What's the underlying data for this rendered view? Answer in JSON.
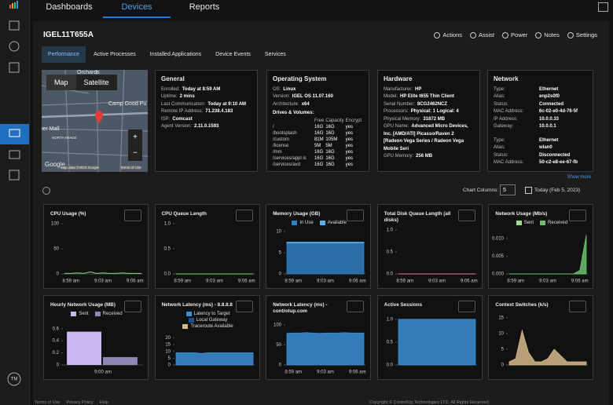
{
  "nav": {
    "tabs": [
      "Dashboards",
      "Devices",
      "Reports"
    ],
    "active": 1
  },
  "device": {
    "name": "IGEL11T655A",
    "actions": [
      "Actions",
      "Assist",
      "Power",
      "Notes",
      "Settings"
    ]
  },
  "tabs": {
    "items": [
      "Performance",
      "Active Processes",
      "Installed Applications",
      "Device Events",
      "Services"
    ],
    "active": 0
  },
  "map": {
    "buttons": [
      "Map",
      "Satellite"
    ],
    "labels": [
      "Orchards",
      "Camp Good Pu",
      "ver Mall",
      "NORTH IMAGE"
    ],
    "attribution": [
      "Google",
      "Map data ©2023 Google",
      "Terms of Use"
    ]
  },
  "cards": [
    {
      "title": "General",
      "groups": [
        [
          [
            "Enrolled:",
            "Today at 8:59 AM"
          ],
          [
            "Uptime:",
            "2 mins"
          ],
          [
            "Last Communication:",
            "Today at 9:10 AM"
          ],
          [
            "Remote IP Address:",
            "71.238.4.183"
          ],
          [
            "ISP:",
            "Comcast"
          ],
          [
            "Agent Version:",
            "2.11.0.1593"
          ]
        ]
      ]
    },
    {
      "title": "Operating System",
      "groups": [
        [
          [
            "OS:",
            "Linux"
          ],
          [
            "Version:",
            "IGEL OS 11.07.160"
          ],
          [
            "Architecture:",
            "x64"
          ]
        ]
      ],
      "drives": {
        "title": "Drives & Volumes:",
        "header": [
          "Free",
          "Capacity",
          "Encrypt"
        ],
        "rows": [
          [
            "/",
            "16G",
            "16G",
            "yes"
          ],
          [
            "/bootsplash",
            "16G",
            "16G",
            "yes"
          ],
          [
            "/custom",
            "81M",
            "105M",
            "yes"
          ],
          [
            "/license",
            "5M",
            "5M",
            "yes"
          ],
          [
            "/mm",
            "16G",
            "16G",
            "yes"
          ],
          [
            "/services/appl is",
            "16G",
            "16G",
            "yes"
          ],
          [
            "/services/avd",
            "16G",
            "16G",
            "yes"
          ]
        ]
      }
    },
    {
      "title": "Hardware",
      "groups": [
        [
          [
            "Manufacturer:",
            "HP"
          ],
          [
            "Model:",
            "HP Elite t655 Thin Client"
          ],
          [
            "Serial Number:",
            "8CG2462NCZ"
          ],
          [
            "Processors:",
            "Physical: 1 Logical: 4"
          ],
          [
            "Physical Memory:",
            "31872 MB"
          ],
          [
            "GPU Name:",
            "Advanced Micro Devices, Inc. [AMD/ATI] Picasso/Raven 2 [Radeon Vega Series / Radeon Vega Mobile Seri"
          ],
          [
            "GPU Memory:",
            "256 MB"
          ]
        ]
      ]
    },
    {
      "title": "Network",
      "groups": [
        [
          [
            "Type:",
            "Ethernet"
          ],
          [
            "Alias:",
            "enp2s0f0"
          ],
          [
            "Status:",
            "Connected"
          ],
          [
            "MAC Address:",
            "6c-02-e0-4d-76-5f"
          ],
          [
            "IP Address:",
            "10.0.0.33"
          ],
          [
            "Gateway:",
            "10.0.0.1"
          ]
        ],
        [
          [
            "Type:",
            "Ethernet"
          ],
          [
            "Alias:",
            "wlan0"
          ],
          [
            "Status:",
            "Disconnected"
          ],
          [
            "MAC Address:",
            "50-c2-e8-ee-67-fb"
          ]
        ]
      ]
    }
  ],
  "controls": {
    "show_more": "Show more",
    "columns_label": "Chart Columns:",
    "columns": "5",
    "date": "Today (Feb 5, 2023)"
  },
  "charts": [
    {
      "title": "CPU Usage (%)",
      "type": "line",
      "ylim": [
        0,
        100
      ],
      "yticks": [
        100,
        50,
        0
      ],
      "xlabels": [
        "8:59 am",
        "9:03 am",
        "9:06 am"
      ],
      "series": [
        {
          "color": "#7ed87e",
          "values": [
            1,
            1,
            2,
            1,
            4,
            1,
            2,
            1,
            1,
            2,
            1,
            1,
            1
          ]
        }
      ]
    },
    {
      "title": "CPU Queue Length",
      "type": "line",
      "ylim": [
        0,
        1
      ],
      "yticks": [
        {
          "value": 1,
          "label": "1.0"
        },
        0.5,
        {
          "value": 0,
          "label": "0.0"
        }
      ],
      "xlabels": [
        "8:59 am",
        "9:03 am",
        "9:06 am"
      ],
      "series": [
        {
          "color": "#7ed87e",
          "values": [
            0,
            0,
            0,
            0,
            0,
            0,
            0,
            0,
            0,
            0,
            0,
            0,
            0
          ]
        }
      ]
    },
    {
      "title": "Memory Usage (GB)",
      "type": "area",
      "ylim": [
        0,
        10
      ],
      "yticks": [
        10,
        5,
        0
      ],
      "xlabels": [
        "8:59 am",
        "9:03 am",
        "9:06 am"
      ],
      "series": [
        {
          "name": "In Use",
          "color": "#2f7fc4",
          "values": [
            7.3,
            7.3,
            7.3,
            7.3,
            7.3,
            7.3,
            7.3,
            7.3,
            7.3,
            7.3,
            7.3,
            7.3,
            7.3
          ]
        },
        {
          "name": "Available",
          "color": "#5ab0ea",
          "values": [
            0.2,
            0.2,
            0.2,
            0.2,
            0.2,
            0.2,
            0.2,
            0.2,
            0.2,
            0.2,
            0.2,
            0.2,
            0.2
          ]
        }
      ]
    },
    {
      "title": "Total Disk Queue Length (all disks)",
      "type": "line",
      "ylim": [
        0,
        1
      ],
      "yticks": [
        {
          "value": 1,
          "label": "1.0"
        },
        0.5,
        {
          "value": 0,
          "label": "0.0"
        }
      ],
      "xlabels": [
        "8:59 am",
        "9:03 am",
        "9:06 am"
      ],
      "series": [
        {
          "color": "#e07aa0",
          "values": [
            0,
            0,
            0,
            0,
            0,
            0,
            0,
            0,
            0,
            0,
            0,
            0,
            0
          ]
        }
      ]
    },
    {
      "title": "Network Usage (Mb/s)",
      "type": "area",
      "ylim": [
        0,
        0.012
      ],
      "yticks": [
        {
          "value": 0.01,
          "label": "0.010"
        },
        0.005,
        {
          "value": 0,
          "label": "0.000"
        }
      ],
      "xlabels": [
        "8:59 am",
        "9:03 am",
        "9:06 am"
      ],
      "series": [
        {
          "name": "Sent",
          "color": "#9edc8e",
          "values": [
            0,
            0,
            0,
            0,
            0,
            0,
            0,
            0,
            0,
            0,
            0,
            0,
            0
          ]
        },
        {
          "name": "Received",
          "color": "#6cc06c",
          "values": [
            0,
            0,
            0,
            0,
            0,
            0,
            0,
            0,
            0,
            0,
            0,
            0.001,
            0.011
          ]
        }
      ]
    },
    {
      "title": "Hourly Network Usage (MB)",
      "type": "bar",
      "ylim": [
        0,
        0.7
      ],
      "yticks": [
        0.6,
        0.4,
        0.2,
        0
      ],
      "categories": [
        "9:00 am"
      ],
      "series": [
        {
          "name": "Sent",
          "color": "#c9b8f0",
          "values": [
            0.55
          ]
        },
        {
          "name": "Received",
          "color": "#8f86b5",
          "values": [
            0.13
          ]
        }
      ]
    },
    {
      "title": "Network Latency (ms) - 8.8.8.8",
      "type": "area",
      "ylim": [
        0,
        22
      ],
      "yticks": [
        20,
        15,
        10,
        5,
        0
      ],
      "xlabels": [],
      "series": [
        {
          "name": "Latency to Target",
          "color": "#3a8fd6",
          "values": [
            9,
            9,
            9,
            9,
            8.5,
            9,
            9,
            9,
            9,
            9,
            9,
            9,
            9
          ]
        },
        {
          "name": "Local Gateway",
          "color": "#1d4f8a",
          "values": [
            null,
            null,
            null,
            null,
            null,
            null,
            null,
            null,
            null,
            null,
            null,
            null,
            null
          ]
        },
        {
          "name": "Traceroute Available",
          "color": "#d6b98a",
          "values": [
            null,
            null,
            null,
            null,
            null,
            null,
            null,
            null,
            null,
            null,
            null,
            null,
            null
          ]
        }
      ]
    },
    {
      "title": "Network Latency (ms) - controlup.com",
      "type": "area",
      "ylim": [
        0,
        110
      ],
      "yticks": [
        100,
        50,
        0
      ],
      "xlabels": [
        "8:59 am",
        "9:03 am",
        "9:06 am"
      ],
      "series": [
        {
          "color": "#3a8fd6",
          "values": [
            79,
            80,
            80,
            81,
            80,
            79,
            80,
            80,
            80,
            81,
            80,
            80,
            80
          ]
        }
      ]
    },
    {
      "title": "Active Sessions",
      "type": "area",
      "ylim": [
        0,
        1.1
      ],
      "yticks": [
        {
          "value": 1,
          "label": "1.0"
        },
        0.5,
        {
          "value": 0,
          "label": "0.0"
        }
      ],
      "xlabels": [],
      "series": [
        {
          "color": "#3a8fd6",
          "values": [
            1,
            1,
            1,
            1,
            1,
            1,
            1,
            1,
            1,
            1,
            1,
            1,
            1
          ]
        }
      ]
    },
    {
      "title": "Context Switches (k/s)",
      "type": "area",
      "ylim": [
        0,
        16
      ],
      "yticks": [
        15,
        10,
        5,
        0
      ],
      "xlabels": [],
      "series": [
        {
          "color": "#d6b98a",
          "values": [
            1,
            2,
            11,
            4,
            1,
            1,
            2,
            5,
            3,
            1,
            1,
            1,
            1
          ]
        }
      ]
    }
  ],
  "footer": {
    "links": [
      "Terms of Use",
      "Privacy Policy",
      "Help"
    ],
    "copyright": "Copyright © ControlUp Technologies LTD. All Rights Reserved."
  }
}
